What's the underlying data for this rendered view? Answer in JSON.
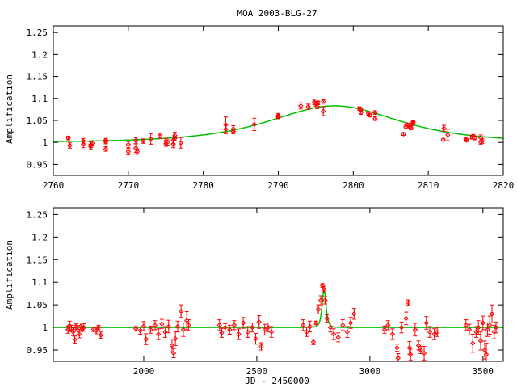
{
  "chart_data": [
    {
      "type": "scatter",
      "title": "MOA 2003-BLG-27",
      "xlabel": "",
      "ylabel": "Amplification",
      "xlim": [
        2760,
        2820
      ],
      "ylim": [
        0.925,
        1.265
      ],
      "xticks": [
        2760,
        2770,
        2780,
        2790,
        2800,
        2810,
        2820
      ],
      "xtick_labels": [
        "2760",
        "2770",
        "2780",
        "2790",
        "2800",
        "2810",
        "2820"
      ],
      "yticks": [
        0.95,
        1.0,
        1.05,
        1.1,
        1.15,
        1.2,
        1.25
      ],
      "ytick_labels": [
        "0.95",
        "1",
        "1.05",
        "1.1",
        "1.15",
        "1.2",
        "1.25"
      ],
      "grid": false,
      "series": [
        {
          "name": "data",
          "style": "points-errorbars",
          "color": "#ff0000",
          "points": [
            [
              2762,
              1.01,
              0.004
            ],
            [
              2762.2,
              0.993,
              0.006
            ],
            [
              2764,
              0.996,
              0.008
            ],
            [
              2764,
              1.003,
              0.006
            ],
            [
              2765,
              0.995,
              0.006
            ],
            [
              2765,
              0.99,
              0.006
            ],
            [
              2765.2,
              0.998,
              0.005
            ],
            [
              2767,
              1.005,
              0.004
            ],
            [
              2767,
              0.985,
              0.005
            ],
            [
              2767,
              1.001,
              0.004
            ],
            [
              2770,
              0.979,
              0.007
            ],
            [
              2770,
              0.995,
              0.007
            ],
            [
              2771,
              0.987,
              0.01
            ],
            [
              2771,
              1.004,
              0.007
            ],
            [
              2771.2,
              0.979,
              0.006
            ],
            [
              2772,
              1.003,
              0.005
            ],
            [
              2773,
              1.008,
              0.012
            ],
            [
              2774.2,
              1.014,
              0.005
            ],
            [
              2775,
              1.003,
              0.006
            ],
            [
              2775,
              0.997,
              0.006
            ],
            [
              2775.2,
              1.0,
              0.006
            ],
            [
              2776,
              1.005,
              0.007
            ],
            [
              2776,
              0.996,
              0.008
            ],
            [
              2776.2,
              1.016,
              0.007
            ],
            [
              2776.2,
              1.009,
              0.005
            ],
            [
              2777,
              0.999,
              0.012
            ],
            [
              2783,
              1.04,
              0.018
            ],
            [
              2783,
              1.03,
              0.01
            ],
            [
              2784,
              1.025,
              0.005
            ],
            [
              2784,
              1.031,
              0.007
            ],
            [
              2786.8,
              1.041,
              0.014
            ],
            [
              2790,
              1.061,
              0.005
            ],
            [
              2790,
              1.058,
              0.004
            ],
            [
              2793,
              1.083,
              0.007
            ],
            [
              2794,
              1.081,
              0.006
            ],
            [
              2794.8,
              1.092,
              0.006
            ],
            [
              2795,
              1.088,
              0.005
            ],
            [
              2795.2,
              1.082,
              0.005
            ],
            [
              2795.3,
              1.09,
              0.004
            ],
            [
              2796,
              1.093,
              0.004
            ],
            [
              2796,
              1.071,
              0.01
            ],
            [
              2800.8,
              1.077,
              0.004
            ],
            [
              2801,
              1.068,
              0.004
            ],
            [
              2801,
              1.075,
              0.004
            ],
            [
              2802,
              1.066,
              0.004
            ],
            [
              2802.2,
              1.062,
              0.004
            ],
            [
              2802.9,
              1.068,
              0.004
            ],
            [
              2802.9,
              1.054,
              0.004
            ],
            [
              2806.7,
              1.019,
              0.003
            ],
            [
              2807,
              1.035,
              0.004
            ],
            [
              2807.2,
              1.04,
              0.004
            ],
            [
              2807.5,
              1.036,
              0.003
            ],
            [
              2807.7,
              1.033,
              0.004
            ],
            [
              2807.9,
              1.043,
              0.004
            ],
            [
              2808,
              1.046,
              0.003
            ],
            [
              2812,
              1.006,
              0.003
            ],
            [
              2812.1,
              1.032,
              0.007
            ],
            [
              2812.6,
              1.017,
              0.013
            ],
            [
              2815,
              1.008,
              0.004
            ],
            [
              2815.1,
              1.005,
              0.003
            ],
            [
              2815.8,
              1.012,
              0.004
            ],
            [
              2816,
              1.015,
              0.003
            ],
            [
              2816.2,
              1.01,
              0.004
            ],
            [
              2817,
              1.0,
              0.004
            ],
            [
              2817,
              1.01,
              0.007
            ],
            [
              2817.2,
              1.003,
              0.005
            ]
          ]
        },
        {
          "name": "model",
          "style": "line",
          "color": "#00c000",
          "model": {
            "t0": 2797.5,
            "u0": 1.79,
            "tE": 7.3,
            "baseline": 1.0
          }
        }
      ]
    },
    {
      "type": "scatter",
      "title": "",
      "xlabel": "JD - 2450000",
      "ylabel": "Amplification",
      "xlim": [
        1600,
        3590
      ],
      "ylim": [
        0.925,
        1.265
      ],
      "xticks": [
        2000,
        2500,
        3000,
        3500
      ],
      "xtick_labels": [
        "2000",
        "2500",
        "3000",
        "3500"
      ],
      "yticks": [
        0.95,
        1.0,
        1.05,
        1.1,
        1.15,
        1.2,
        1.25
      ],
      "ytick_labels": [
        "0.95",
        "1",
        "1.05",
        "1.1",
        "1.15",
        "1.2",
        "1.25"
      ],
      "grid": false,
      "series": [
        {
          "name": "data",
          "style": "points-errorbars",
          "color": "#ff0000",
          "points": [
            [
              1665,
              0.995,
              0.008
            ],
            [
              1672,
              1.004,
              0.01
            ],
            [
              1680,
              0.998,
              0.007
            ],
            [
              1688,
              0.99,
              0.009
            ],
            [
              1695,
              0.973,
              0.008
            ],
            [
              1700,
              1.002,
              0.006
            ],
            [
              1708,
              0.994,
              0.01
            ],
            [
              1715,
              0.985,
              0.008
            ],
            [
              1722,
              1.003,
              0.007
            ],
            [
              1728,
              0.997,
              0.006
            ],
            [
              1735,
              1.0,
              0.008
            ],
            [
              1778,
              0.996,
              0.005
            ],
            [
              1790,
              0.993,
              0.007
            ],
            [
              1800,
              1.0,
              0.005
            ],
            [
              1810,
              0.983,
              0.007
            ],
            [
              1965,
              0.997,
              0.005
            ],
            [
              1985,
              0.993,
              0.008
            ],
            [
              2000,
              1.003,
              0.01
            ],
            [
              2010,
              0.974,
              0.012
            ],
            [
              2030,
              0.995,
              0.008
            ],
            [
              2050,
              1.005,
              0.01
            ],
            [
              2065,
              0.985,
              0.012
            ],
            [
              2080,
              1.008,
              0.01
            ],
            [
              2095,
              0.99,
              0.012
            ],
            [
              2110,
              1.002,
              0.014
            ],
            [
              2125,
              0.96,
              0.014
            ],
            [
              2132,
              0.943,
              0.01
            ],
            [
              2140,
              0.975,
              0.015
            ],
            [
              2150,
              1.002,
              0.012
            ],
            [
              2165,
              1.036,
              0.014
            ],
            [
              2175,
              0.995,
              0.015
            ],
            [
              2190,
              1.015,
              0.02
            ],
            [
              2198,
              1.005,
              0.012
            ],
            [
              2335,
              1.005,
              0.012
            ],
            [
              2345,
              0.988,
              0.01
            ],
            [
              2360,
              1.0,
              0.008
            ],
            [
              2380,
              0.995,
              0.01
            ],
            [
              2400,
              1.005,
              0.01
            ],
            [
              2420,
              0.985,
              0.012
            ],
            [
              2440,
              1.01,
              0.012
            ],
            [
              2460,
              0.99,
              0.012
            ],
            [
              2480,
              1.0,
              0.01
            ],
            [
              2495,
              0.975,
              0.012
            ],
            [
              2510,
              1.012,
              0.014
            ],
            [
              2520,
              0.958,
              0.008
            ],
            [
              2535,
              0.995,
              0.012
            ],
            [
              2550,
              1.0,
              0.01
            ],
            [
              2565,
              0.99,
              0.012
            ],
            [
              2705,
              1.005,
              0.012
            ],
            [
              2720,
              0.99,
              0.01
            ],
            [
              2735,
              1.002,
              0.012
            ],
            [
              2750,
              0.968,
              0.006
            ],
            [
              2762,
              1.01,
              0.004
            ],
            [
              2772,
              1.04,
              0.01
            ],
            [
              2783,
              1.06,
              0.01
            ],
            [
              2790,
              1.093,
              0.004
            ],
            [
              2796,
              1.085,
              0.006
            ],
            [
              2802,
              1.06,
              0.008
            ],
            [
              2810,
              1.02,
              0.008
            ],
            [
              2825,
              1.0,
              0.01
            ],
            [
              2840,
              0.985,
              0.012
            ],
            [
              2860,
              0.978,
              0.01
            ],
            [
              2880,
              1.005,
              0.012
            ],
            [
              2900,
              0.99,
              0.012
            ],
            [
              2915,
              1.01,
              0.012
            ],
            [
              2930,
              1.03,
              0.012
            ],
            [
              3065,
              0.995,
              0.008
            ],
            [
              3080,
              1.005,
              0.01
            ],
            [
              3100,
              0.985,
              0.012
            ],
            [
              3120,
              0.955,
              0.008
            ],
            [
              3125,
              0.932,
              0.01
            ],
            [
              3140,
              1.0,
              0.012
            ],
            [
              3160,
              1.02,
              0.014
            ],
            [
              3170,
              1.055,
              0.006
            ],
            [
              3175,
              0.955,
              0.014
            ],
            [
              3180,
              0.94,
              0.012
            ],
            [
              3200,
              0.995,
              0.014
            ],
            [
              3215,
              0.96,
              0.01
            ],
            [
              3225,
              0.95,
              0.008
            ],
            [
              3240,
              0.943,
              0.015
            ],
            [
              3250,
              1.01,
              0.014
            ],
            [
              3265,
              0.99,
              0.012
            ],
            [
              3285,
              0.985,
              0.012
            ],
            [
              3298,
              0.99,
              0.01
            ],
            [
              3425,
              1.005,
              0.012
            ],
            [
              3440,
              0.995,
              0.012
            ],
            [
              3455,
              0.965,
              0.02
            ],
            [
              3470,
              0.99,
              0.012
            ],
            [
              3480,
              1.0,
              0.015
            ],
            [
              3490,
              0.97,
              0.02
            ],
            [
              3500,
              1.01,
              0.015
            ],
            [
              3508,
              0.95,
              0.02
            ],
            [
              3515,
              0.94,
              0.025
            ],
            [
              3520,
              0.995,
              0.015
            ],
            [
              3530,
              1.005,
              0.02
            ],
            [
              3540,
              1.03,
              0.02
            ],
            [
              3550,
              0.99,
              0.015
            ],
            [
              3558,
              1.0,
              0.012
            ]
          ]
        },
        {
          "name": "model",
          "style": "line",
          "color": "#00c000",
          "model": {
            "t0": 2797.5,
            "u0": 1.79,
            "tE": 7.3,
            "baseline": 1.0
          }
        }
      ]
    }
  ]
}
